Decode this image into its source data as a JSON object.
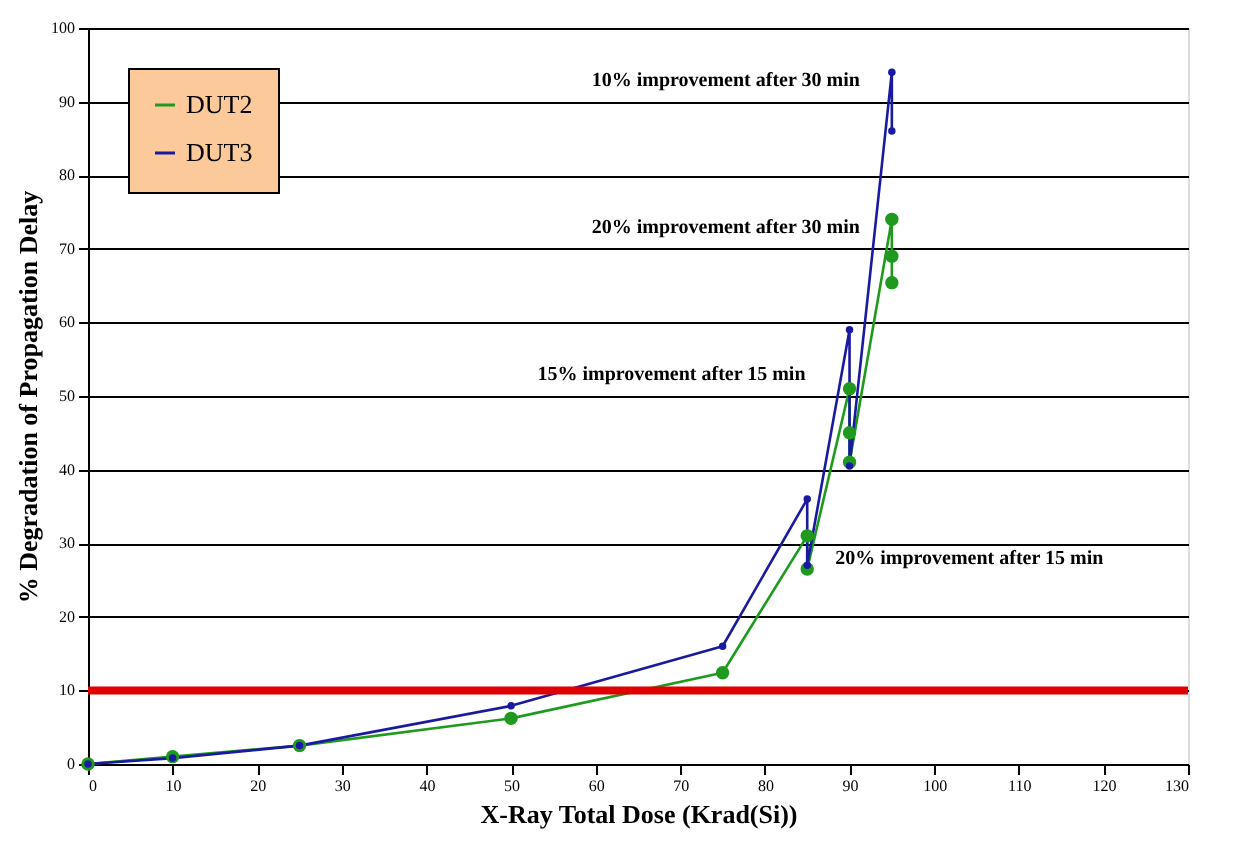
{
  "chart_data": {
    "type": "line",
    "xlabel": "X-Ray Total Dose (Krad(Si))",
    "ylabel": "% Degradation of Propagation Delay",
    "xlim": [
      0,
      130
    ],
    "xticks": [
      0,
      10,
      20,
      30,
      40,
      50,
      60,
      70,
      80,
      90,
      100,
      110,
      120,
      130
    ],
    "ylim": [
      0,
      100
    ],
    "yticks": [
      0,
      10,
      20,
      30,
      40,
      50,
      60,
      70,
      80,
      90,
      100
    ],
    "grid": "y",
    "legend": "top left",
    "marker": "circle",
    "line_style": "solid",
    "series": [
      {
        "name": "DUT2",
        "color": "#1f9a1f",
        "x": [
          0,
          10,
          25,
          50,
          75,
          85,
          85,
          90,
          90,
          90,
          95,
          95,
          95
        ],
        "values": [
          0,
          1,
          2.5,
          6.2,
          12.4,
          31,
          26.5,
          51,
          45,
          41,
          74,
          69,
          65.4
        ]
      },
      {
        "name": "DUT3",
        "color": "#1a1aa0",
        "x": [
          0,
          10,
          25,
          50,
          75,
          85,
          85,
          90,
          90,
          95,
          95
        ],
        "values": [
          0,
          0.8,
          2.5,
          7.9,
          16,
          36,
          27,
          59,
          40.5,
          94,
          86
        ]
      }
    ],
    "ref_lines": [
      {
        "axis": "y",
        "value": 10,
        "color": "#e00000"
      }
    ],
    "annotations": [
      {
        "text": "10% improvement after 30 min",
        "x": 95,
        "y": 90
      },
      {
        "text": "20% improvement after 30 min",
        "x": 95,
        "y": 70
      },
      {
        "text": "15% improvement after 15 min",
        "x": 90,
        "y": 50
      },
      {
        "text": "20% improvement after 15 min",
        "x": 85,
        "y": 28
      }
    ]
  }
}
